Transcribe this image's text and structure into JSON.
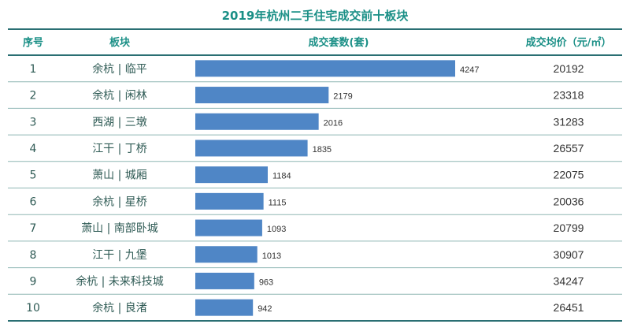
{
  "colors": {
    "title": "#1a8f86",
    "header_text": "#1a8f86",
    "header_line": "#2a6f73",
    "row_line": "#8fb7b4",
    "bar": "#4f86c6",
    "cell_text": "#2f5b55",
    "number_text": "#333333"
  },
  "chart_data": {
    "type": "bar",
    "orientation": "horizontal",
    "title": "2019年杭州二手住宅成交前十板块",
    "columns": {
      "rank": "序号",
      "district": "板块",
      "volume": "成交套数(套)",
      "avg_price": "成交均价（元/㎡）"
    },
    "xlim": [
      0,
      4247
    ],
    "rows": [
      {
        "rank": "1",
        "district": "余杭 | 临平",
        "volume": 4247,
        "avg_price": "20192"
      },
      {
        "rank": "2",
        "district": "余杭 | 闲林",
        "volume": 2179,
        "avg_price": "23318"
      },
      {
        "rank": "3",
        "district": "西湖 | 三墩",
        "volume": 2016,
        "avg_price": "31283"
      },
      {
        "rank": "4",
        "district": "江干 | 丁桥",
        "volume": 1835,
        "avg_price": "26557"
      },
      {
        "rank": "5",
        "district": "萧山 | 城厢",
        "volume": 1184,
        "avg_price": "22075"
      },
      {
        "rank": "6",
        "district": "余杭 | 星桥",
        "volume": 1115,
        "avg_price": "20036"
      },
      {
        "rank": "7",
        "district": "萧山 | 南部卧城",
        "volume": 1093,
        "avg_price": "20799"
      },
      {
        "rank": "8",
        "district": "江干 | 九堡",
        "volume": 1013,
        "avg_price": "30907"
      },
      {
        "rank": "9",
        "district": "余杭 | 未来科技城",
        "volume": 963,
        "avg_price": "34247"
      },
      {
        "rank": "10",
        "district": "余杭 | 良渚",
        "volume": 942,
        "avg_price": "26451"
      }
    ]
  }
}
